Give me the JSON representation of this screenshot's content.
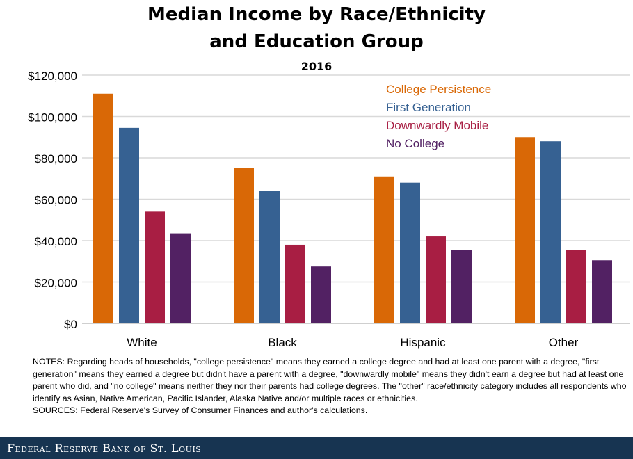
{
  "chart_data": {
    "type": "bar",
    "title": "Median Income by Race/Ethnicity and Education Group",
    "title_lines": [
      "Median Income by Race/Ethnicity",
      "and Education Group"
    ],
    "subtitle": "2016",
    "categories": [
      "White",
      "Black",
      "Hispanic",
      "Other"
    ],
    "ylim": [
      0,
      120000
    ],
    "yticks": [
      0,
      20000,
      40000,
      60000,
      80000,
      100000,
      120000
    ],
    "ytick_labels": [
      "$0",
      "$20,000",
      "$40,000",
      "$60,000",
      "$80,000",
      "$100,000",
      "$120,000"
    ],
    "grid": true,
    "legend_placement": "top-right",
    "series": [
      {
        "name": "College Persistence",
        "color": "#D96806",
        "values": [
          111000,
          75000,
          71000,
          90000
        ]
      },
      {
        "name": "First Generation",
        "color": "#366192",
        "values": [
          94500,
          64000,
          68000,
          88000
        ]
      },
      {
        "name": "Downwardly Mobile",
        "color": "#A81E43",
        "values": [
          54000,
          38000,
          42000,
          35500
        ]
      },
      {
        "name": "No College",
        "color": "#522163",
        "values": [
          43500,
          27500,
          35500,
          30500
        ]
      }
    ]
  },
  "notes": "NOTES: Regarding heads of households, \"college persistence\" means they earned a college degree and had at least one parent with a degree, \"first generation\" means they earned a degree but didn't have a parent with a degree, \"downwardly mobile\" means they didn't earn a degree but had at least one parent who did, and \"no college\" means neither they nor their parents had college degrees. The \"other\" race/ethnicity category includes all respondents who identify as Asian, Native American, Pacific Islander, Alaska Native and/or multiple races or ethnicities.",
  "sources": "SOURCES: Federal Reserve's Survey of Consumer Finances and author's calculations.",
  "footer": "Federal Reserve Bank of St. Louis"
}
